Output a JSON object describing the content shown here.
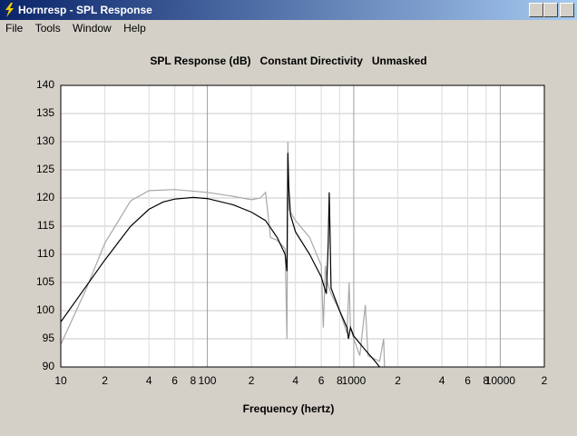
{
  "window": {
    "title": "Hornresp - SPL Response"
  },
  "menu": [
    "File",
    "Tools",
    "Window",
    "Help"
  ],
  "chart_data": {
    "type": "line",
    "title": "SPL Response (dB)   Constant Directivity   Unmasked",
    "x_label": "Frequency (hertz)",
    "xscale": "log",
    "grid": true,
    "xlim": [
      10,
      20000
    ],
    "ylim": [
      90,
      140
    ],
    "xticks": [
      {
        "value": 10,
        "label": "10"
      },
      {
        "value": 20,
        "label": "2"
      },
      {
        "value": 40,
        "label": "4"
      },
      {
        "value": 60,
        "label": "6"
      },
      {
        "value": 80,
        "label": "8"
      },
      {
        "value": 100,
        "label": "100"
      },
      {
        "value": 200,
        "label": "2"
      },
      {
        "value": 400,
        "label": "4"
      },
      {
        "value": 600,
        "label": "6"
      },
      {
        "value": 800,
        "label": "8"
      },
      {
        "value": 1000,
        "label": "1000"
      },
      {
        "value": 2000,
        "label": "2"
      },
      {
        "value": 4000,
        "label": "4"
      },
      {
        "value": 6000,
        "label": "6"
      },
      {
        "value": 8000,
        "label": "8"
      },
      {
        "value": 10000,
        "label": "10000"
      },
      {
        "value": 20000,
        "label": "2"
      }
    ],
    "yticks": [
      90,
      95,
      100,
      105,
      110,
      115,
      120,
      125,
      130,
      135,
      140
    ],
    "series": [
      {
        "color": "#a8a8a8",
        "x": [
          10,
          15,
          20,
          30,
          40,
          60,
          100,
          150,
          200,
          230,
          250,
          260,
          270,
          300,
          340,
          350,
          355,
          360,
          400,
          500,
          600,
          620,
          640,
          660,
          700,
          800,
          900,
          930,
          950,
          1000,
          1100,
          1200,
          1250,
          1500,
          1600,
          1620
        ],
        "values": [
          94,
          104,
          112,
          119.5,
          121.3,
          121.5,
          121,
          120.3,
          119.7,
          120,
          121,
          117,
          113,
          112.5,
          111,
          95,
          130,
          118,
          116,
          113,
          108,
          97,
          108,
          105,
          103,
          100,
          96,
          105,
          97,
          95,
          92,
          101,
          92,
          91,
          95,
          90
        ]
      },
      {
        "color": "#000000",
        "x": [
          10,
          20,
          30,
          40,
          50,
          60,
          80,
          100,
          150,
          200,
          250,
          300,
          340,
          350,
          355,
          360,
          370,
          400,
          500,
          600,
          650,
          670,
          680,
          690,
          700,
          800,
          900,
          920,
          950,
          1000,
          1200,
          1400,
          1500
        ],
        "values": [
          98,
          109,
          115,
          118,
          119.3,
          119.8,
          120.1,
          119.9,
          118.8,
          117.5,
          116,
          113,
          110,
          107,
          128,
          122,
          117,
          114,
          110,
          106,
          103,
          112,
          121,
          113,
          104,
          100,
          97,
          95,
          97,
          95.5,
          93,
          91,
          90
        ]
      }
    ]
  }
}
